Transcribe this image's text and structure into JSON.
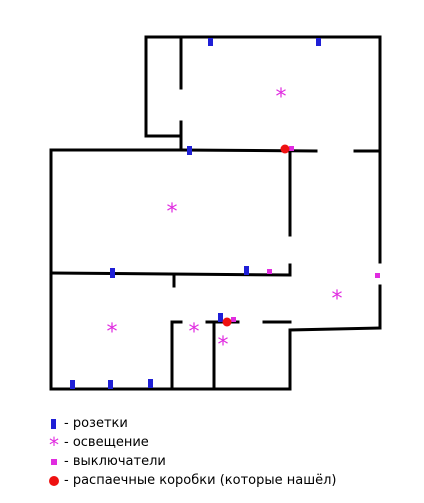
{
  "colors": {
    "wall": "#000000",
    "socket": "#1f1fd6",
    "light": "#e02ce0",
    "switch": "#e02ce0",
    "junction_box": "#ee1111"
  },
  "symbols": {
    "light": "*"
  },
  "legend": [
    {
      "type": "socket",
      "icon": "socket-icon",
      "label": "- розетки"
    },
    {
      "type": "light",
      "icon": "light-asterisk-icon",
      "label": "- освещение"
    },
    {
      "type": "switch",
      "icon": "switch-icon",
      "label": "- выключатели"
    },
    {
      "type": "junction_box",
      "icon": "junction-box-icon",
      "label": "- распаечные коробки (которые нашёл)"
    }
  ]
}
